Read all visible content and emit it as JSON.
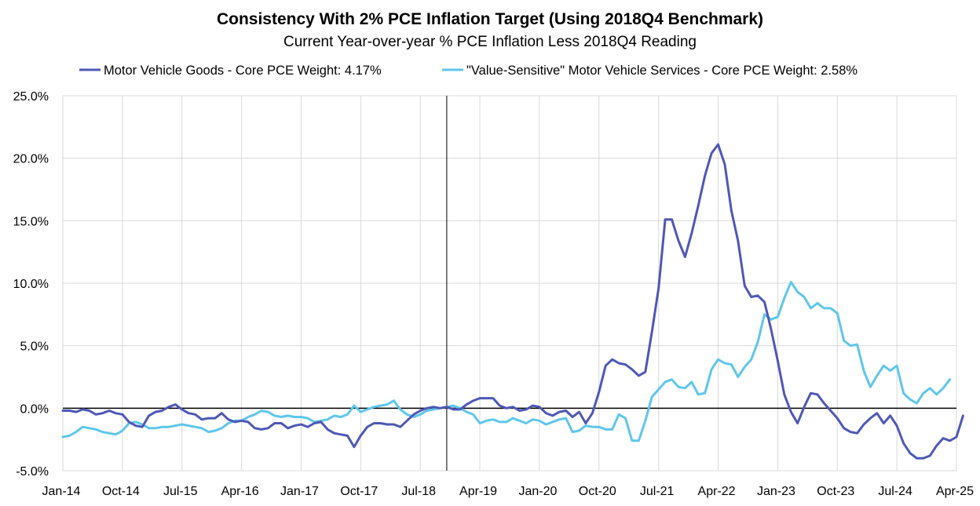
{
  "chart_data": {
    "type": "line",
    "title": "Consistency With 2% PCE Inflation Target (Using 2018Q4 Benchmark)",
    "subtitle": "Current Year-over-year % PCE Inflation Less 2018Q4 Reading",
    "xlabel": "",
    "ylabel": "",
    "ylim": [
      -5.0,
      25.0
    ],
    "y_ticks": [
      "25.0%",
      "20.0%",
      "15.0%",
      "10.0%",
      "5.0%",
      "0.0%",
      "-5.0%"
    ],
    "y_tick_values": [
      25,
      20,
      15,
      10,
      5,
      0,
      -5
    ],
    "x_ticks": [
      "Jan-14",
      "Oct-14",
      "Jul-15",
      "Apr-16",
      "Jan-17",
      "Oct-17",
      "Jul-18",
      "Apr-19",
      "Jan-20",
      "Oct-20",
      "Jul-21",
      "Apr-22",
      "Jan-23",
      "Oct-23",
      "Jul-24",
      "Apr-25"
    ],
    "x_start": "Jan-14",
    "x_step_months": 1,
    "benchmark_line": "2018Q4",
    "grid": true,
    "legend_position": "top",
    "series": [
      {
        "name": "Motor Vehicle Goods - Core PCE Weight: 4.17%",
        "color": "#4e58b6",
        "values": [
          -0.2,
          -0.2,
          -0.3,
          -0.1,
          -0.2,
          -0.5,
          -0.4,
          -0.2,
          -0.4,
          -0.5,
          -1.1,
          -1.4,
          -1.5,
          -0.6,
          -0.3,
          -0.2,
          0.1,
          0.3,
          -0.1,
          -0.4,
          -0.5,
          -0.9,
          -0.8,
          -0.8,
          -0.4,
          -0.9,
          -1.1,
          -1.0,
          -1.1,
          -1.6,
          -1.7,
          -1.6,
          -1.2,
          -1.2,
          -1.6,
          -1.4,
          -1.3,
          -1.5,
          -1.2,
          -1.1,
          -1.7,
          -2.0,
          -2.1,
          -2.2,
          -3.1,
          -2.2,
          -1.5,
          -1.2,
          -1.2,
          -1.3,
          -1.3,
          -1.5,
          -1.0,
          -0.5,
          -0.2,
          0.0,
          0.1,
          0.0,
          0.1,
          -0.1,
          -0.1,
          0.3,
          0.6,
          0.8,
          0.8,
          0.8,
          0.2,
          0.0,
          0.1,
          -0.2,
          -0.1,
          0.2,
          0.1,
          -0.4,
          -0.6,
          -0.3,
          -0.2,
          -0.7,
          -0.3,
          -1.2,
          -0.4,
          1.3,
          3.4,
          3.9,
          3.6,
          3.5,
          3.1,
          2.6,
          2.9,
          6.1,
          9.6,
          15.1,
          15.1,
          13.4,
          12.1,
          14.0,
          16.2,
          18.6,
          20.4,
          21.1,
          19.5,
          15.8,
          13.4,
          9.8,
          8.9,
          9.0,
          8.5,
          6.3,
          3.8,
          1.1,
          -0.3,
          -1.2,
          0.1,
          1.2,
          1.1,
          0.4,
          -0.2,
          -0.8,
          -1.6,
          -1.9,
          -2.0,
          -1.3,
          -0.8,
          -0.4,
          -1.2,
          -0.6,
          -1.4,
          -2.8,
          -3.6,
          -4.0,
          -4.0,
          -3.8,
          -3.0,
          -2.4,
          -2.6,
          -2.3,
          -0.6
        ]
      },
      {
        "name": "\"Value-Sensitive\" Motor Vehicle Services - Core PCE Weight: 2.58%",
        "color": "#5fc6ea",
        "values": [
          -2.3,
          -2.2,
          -1.9,
          -1.5,
          -1.6,
          -1.7,
          -1.9,
          -2.0,
          -2.1,
          -1.8,
          -1.2,
          -1.1,
          -1.3,
          -1.6,
          -1.6,
          -1.5,
          -1.5,
          -1.4,
          -1.3,
          -1.4,
          -1.5,
          -1.6,
          -1.9,
          -1.8,
          -1.6,
          -1.2,
          -1.0,
          -1.0,
          -0.7,
          -0.5,
          -0.2,
          -0.3,
          -0.6,
          -0.7,
          -0.6,
          -0.7,
          -0.7,
          -0.8,
          -1.1,
          -1.0,
          -0.9,
          -0.6,
          -0.7,
          -0.5,
          0.2,
          -0.3,
          -0.1,
          0.1,
          0.2,
          0.3,
          0.6,
          -0.1,
          -0.5,
          -0.7,
          -0.5,
          -0.2,
          -0.1,
          0.0,
          0.1,
          0.2,
          0.0,
          -0.3,
          -0.5,
          -1.2,
          -1.0,
          -0.9,
          -1.1,
          -1.1,
          -0.8,
          -1.0,
          -1.2,
          -0.9,
          -1.0,
          -1.3,
          -1.1,
          -0.9,
          -0.8,
          -1.9,
          -1.8,
          -1.4,
          -1.5,
          -1.5,
          -1.7,
          -1.7,
          -0.5,
          -0.8,
          -2.6,
          -2.6,
          -1.0,
          0.9,
          1.5,
          2.1,
          2.3,
          1.7,
          1.6,
          2.1,
          1.1,
          1.2,
          3.1,
          3.9,
          3.6,
          3.5,
          2.5,
          3.3,
          3.9,
          5.3,
          7.5,
          7.1,
          7.3,
          8.8,
          10.1,
          9.3,
          8.9,
          8.0,
          8.4,
          8.0,
          8.0,
          7.6,
          5.4,
          5.0,
          5.1,
          3.0,
          1.7,
          2.6,
          3.4,
          3.0,
          3.4,
          1.2,
          0.7,
          0.4,
          1.2,
          1.6,
          1.1,
          1.6,
          2.3
        ]
      }
    ]
  }
}
